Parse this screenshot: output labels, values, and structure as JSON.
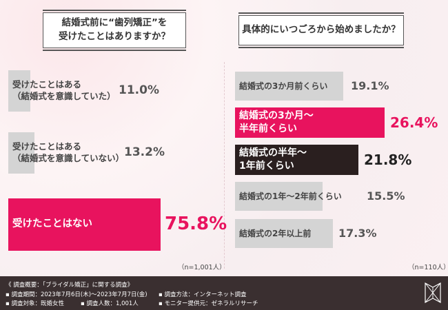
{
  "panels": {
    "left_title": "結婚式前に“歯列矯正”を\n受けたことはありますか？",
    "right_title": "具体的にいつごろから始めましたか？",
    "left_sample": "（n=1,001人）",
    "right_sample": "（n=110人）"
  },
  "footer": {
    "heading": "《 調査概要：「ブライダル矯正」に関する調査》",
    "period": "▪ 調査期間：2023年7月6日(木)～2023年7月7日(金)",
    "target": "▪ 調査対象：既婚女性",
    "count": "▪ 調査人数：1,001人",
    "method": "▪ 調査方法：インターネット調査",
    "provider": "▪ モニター提供元：ゼネラルリサーチ"
  },
  "colors": {
    "pink": "#e8135e",
    "dark": "#2a1f1f",
    "gray": "#d4d4d4"
  },
  "chart_data": [
    {
      "type": "bar",
      "orientation": "horizontal",
      "title": "結婚式前に“歯列矯正”を受けたことはありますか？",
      "categories": [
        "受けたことはある\n（結婚式を意識していた）",
        "受けたことはある\n（結婚式を意識していない）",
        "受けたことはない"
      ],
      "values": [
        11.0,
        13.2,
        75.8
      ],
      "value_labels": [
        "11.0%",
        "13.2%",
        "75.8%"
      ],
      "highlight": [
        "gray",
        "gray",
        "pink"
      ],
      "n": "n=1,001人"
    },
    {
      "type": "bar",
      "orientation": "horizontal",
      "title": "具体的にいつごろから始めましたか？",
      "categories": [
        "結婚式の3か月前くらい",
        "結婚式の3か月～\n半年前くらい",
        "結婚式の半年～\n1年前くらい",
        "結婚式の1年～2年前くらい",
        "結婚式の2年以上前"
      ],
      "values": [
        19.1,
        26.4,
        21.8,
        15.5,
        17.3
      ],
      "value_labels": [
        "19.1%",
        "26.4%",
        "21.8%",
        "15.5%",
        "17.3%"
      ],
      "highlight": [
        "gray",
        "pink",
        "dark",
        "gray",
        "gray"
      ],
      "n": "n=110人"
    }
  ]
}
